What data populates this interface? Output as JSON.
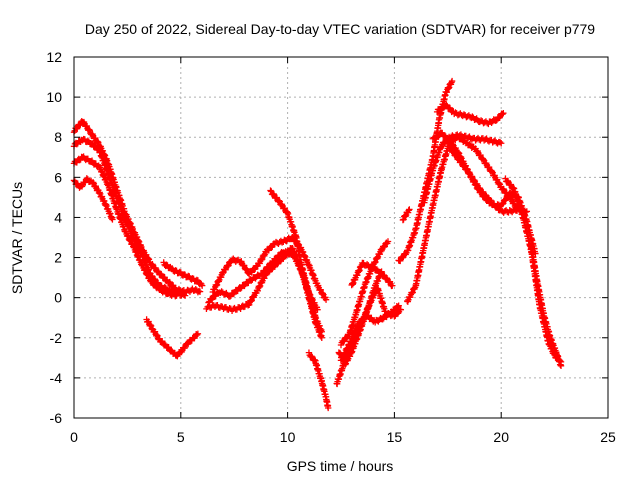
{
  "chart_data": {
    "type": "scatter",
    "title": "Day 250 of 2022, Sidereal Day-to-day VTEC variation (SDTVAR) for receiver p779",
    "xlabel": "GPS time / hours",
    "ylabel": "SDTVAR / TECUs",
    "xlim": [
      0,
      25
    ],
    "ylim": [
      -6,
      12
    ],
    "xticks": [
      0,
      5,
      10,
      15,
      20,
      25
    ],
    "yticks": [
      -6,
      -4,
      -2,
      0,
      2,
      4,
      6,
      8,
      10,
      12
    ],
    "grid": true,
    "marker": "+",
    "color": "#ff0000",
    "series": [
      {
        "x": [
          0.0,
          0.4,
          0.8,
          1.2,
          1.6,
          2.0,
          2.4,
          2.8,
          3.2,
          3.6,
          4.0,
          4.4,
          4.8,
          5.2,
          5.6,
          5.9
        ],
        "values": [
          8.3,
          8.8,
          8.2,
          7.6,
          6.7,
          5.4,
          4.2,
          3.3,
          2.4,
          1.7,
          1.2,
          0.8,
          0.4,
          0.3,
          0.4,
          0.3
        ]
      },
      {
        "x": [
          0.0,
          0.4,
          0.8,
          1.2,
          1.6,
          2.0,
          2.4,
          2.8,
          3.2,
          3.6,
          4.0,
          4.4,
          4.8,
          5.2
        ],
        "values": [
          7.6,
          7.9,
          7.7,
          7.3,
          6.2,
          5.0,
          3.9,
          2.9,
          2.1,
          1.1,
          0.6,
          0.4,
          0.2,
          0.1
        ]
      },
      {
        "x": [
          0.0,
          0.4,
          0.8,
          1.2,
          1.6,
          2.0,
          2.4,
          2.8,
          3.2,
          3.6,
          4.0,
          4.4,
          4.8
        ],
        "values": [
          6.7,
          7.0,
          6.8,
          6.5,
          5.6,
          4.4,
          3.3,
          2.5,
          1.6,
          0.8,
          0.4,
          0.2,
          0.1
        ]
      },
      {
        "x": [
          0.0,
          0.3,
          0.6,
          0.9,
          1.2,
          1.5,
          1.8
        ],
        "values": [
          5.8,
          5.5,
          5.9,
          5.7,
          5.2,
          4.6,
          3.9
        ]
      },
      {
        "x": [
          4.2,
          4.6,
          5.0,
          5.4,
          5.8,
          6.0
        ],
        "values": [
          1.7,
          1.4,
          1.2,
          1.0,
          0.8,
          0.6
        ]
      },
      {
        "x": [
          3.4,
          3.7,
          4.0,
          4.3,
          4.6,
          4.8,
          5.0,
          5.3,
          5.6,
          5.8
        ],
        "values": [
          -1.1,
          -1.6,
          -2.1,
          -2.4,
          -2.7,
          -2.9,
          -2.7,
          -2.3,
          -2.0,
          -1.8
        ]
      },
      {
        "x": [
          6.3,
          6.8,
          7.3,
          7.8,
          8.3,
          8.8,
          9.3,
          9.8,
          10.3,
          10.7,
          11.0,
          11.3,
          11.6
        ],
        "values": [
          -0.2,
          0.3,
          0.1,
          0.5,
          0.9,
          1.2,
          1.8,
          2.3,
          2.1,
          1.2,
          0.0,
          -1.2,
          -2.0
        ]
      },
      {
        "x": [
          6.2,
          6.6,
          7.0,
          7.4,
          7.8,
          8.2,
          8.6,
          9.0,
          9.4,
          9.8,
          10.2,
          10.6,
          11.0,
          11.4
        ],
        "values": [
          -0.5,
          -0.4,
          -0.5,
          -0.6,
          -0.5,
          -0.3,
          0.4,
          1.2,
          1.6,
          2.0,
          2.5,
          1.5,
          0.2,
          -0.6
        ]
      },
      {
        "x": [
          6.5,
          7.0,
          7.4,
          7.8,
          8.2,
          8.6,
          9.0,
          9.4,
          9.8,
          10.2,
          10.6,
          11.0,
          11.4,
          11.8
        ],
        "values": [
          0.3,
          1.3,
          1.9,
          1.8,
          1.2,
          1.6,
          2.3,
          2.7,
          2.8,
          3.0,
          2.5,
          1.6,
          0.6,
          -0.1
        ]
      },
      {
        "x": [
          9.2,
          9.6,
          10.0,
          10.4,
          10.7,
          11.0,
          11.3,
          11.6
        ],
        "values": [
          5.3,
          4.8,
          4.2,
          3.0,
          1.4,
          0.2,
          -1.0,
          -1.7
        ]
      },
      {
        "x": [
          11.0,
          11.3,
          11.6,
          11.8,
          11.9
        ],
        "values": [
          -2.8,
          -3.2,
          -4.2,
          -5.0,
          -5.5
        ]
      },
      {
        "x": [
          12.3,
          12.6,
          12.9,
          13.2,
          13.5,
          13.8,
          14.1,
          14.4
        ],
        "values": [
          -4.3,
          -3.4,
          -2.5,
          -1.9,
          -1.2,
          -0.4,
          0.6,
          1.3
        ]
      },
      {
        "x": [
          12.4,
          12.7,
          13.0,
          13.4,
          13.8,
          14.2,
          14.6,
          15.0,
          15.3
        ],
        "values": [
          -2.7,
          -3.3,
          -2.7,
          -1.6,
          -0.4,
          0.5,
          -0.8,
          -0.9,
          -0.6
        ]
      },
      {
        "x": [
          12.5,
          12.9,
          13.2,
          13.6,
          14.0,
          14.4,
          14.7
        ],
        "values": [
          -2.3,
          -1.8,
          -0.8,
          0.6,
          1.6,
          2.4,
          2.8
        ]
      },
      {
        "x": [
          12.5,
          12.9,
          13.3,
          13.7,
          14.1,
          14.5,
          14.9,
          15.2
        ],
        "values": [
          -3.1,
          -2.3,
          -1.3,
          -0.9,
          -1.2,
          -1.0,
          -0.7,
          -0.4
        ]
      },
      {
        "x": [
          13.0,
          13.5,
          14.0,
          14.5,
          14.9
        ],
        "values": [
          0.6,
          1.7,
          1.5,
          1.1,
          0.6
        ]
      },
      {
        "x": [
          15.2,
          15.6,
          16.0,
          16.4,
          16.8,
          17.1,
          17.4,
          17.7
        ],
        "values": [
          1.8,
          2.3,
          3.4,
          5.2,
          7.0,
          8.9,
          10.2,
          10.8
        ]
      },
      {
        "x": [
          15.6,
          16.0,
          16.4,
          16.8,
          17.2,
          17.6,
          18.0,
          18.4,
          18.8,
          19.2,
          19.6,
          20.0,
          20.4,
          20.7
        ],
        "values": [
          -0.2,
          0.6,
          2.6,
          4.6,
          6.4,
          7.8,
          8.0,
          7.7,
          7.4,
          6.8,
          6.2,
          5.5,
          5.0,
          4.5
        ]
      },
      {
        "x": [
          15.4,
          15.7
        ],
        "values": [
          3.9,
          4.4
        ]
      },
      {
        "x": [
          16.4,
          16.8,
          17.2,
          17.6,
          18.0,
          18.4,
          18.8,
          19.2,
          19.6,
          20.0
        ],
        "values": [
          4.8,
          6.4,
          7.6,
          8.0,
          8.1,
          8.0,
          7.9,
          7.9,
          7.8,
          7.7
        ]
      },
      {
        "x": [
          17.0,
          17.4,
          17.8,
          18.2,
          18.6,
          19.0,
          19.4,
          19.8,
          20.1
        ],
        "values": [
          9.3,
          9.6,
          9.2,
          9.1,
          9.0,
          8.8,
          8.7,
          8.9,
          9.2
        ]
      },
      {
        "x": [
          16.8,
          17.2,
          17.6,
          18.0,
          18.4,
          18.8,
          19.2,
          19.6,
          20.0,
          20.4,
          20.8,
          21.2,
          21.6
        ],
        "values": [
          7.9,
          8.2,
          7.8,
          7.2,
          6.4,
          5.6,
          5.0,
          4.6,
          4.6,
          5.2,
          5.0,
          3.8,
          2.2
        ]
      },
      {
        "x": [
          17.5,
          18.0,
          18.5,
          19.0,
          19.5,
          20.0,
          20.4,
          20.8,
          21.2
        ],
        "values": [
          7.6,
          6.9,
          6.2,
          5.4,
          4.8,
          4.3,
          4.3,
          4.4,
          4.3
        ]
      },
      {
        "x": [
          20.2,
          20.6,
          21.0,
          21.4,
          21.8,
          22.2,
          22.5,
          22.8
        ],
        "values": [
          5.9,
          5.4,
          4.1,
          2.4,
          -0.4,
          -2.2,
          -2.9,
          -3.2
        ]
      },
      {
        "x": [
          21.4,
          21.7,
          22.0,
          22.3,
          22.6,
          22.8
        ],
        "values": [
          2.6,
          0.7,
          -0.9,
          -2.0,
          -2.8,
          -3.4
        ]
      }
    ]
  }
}
